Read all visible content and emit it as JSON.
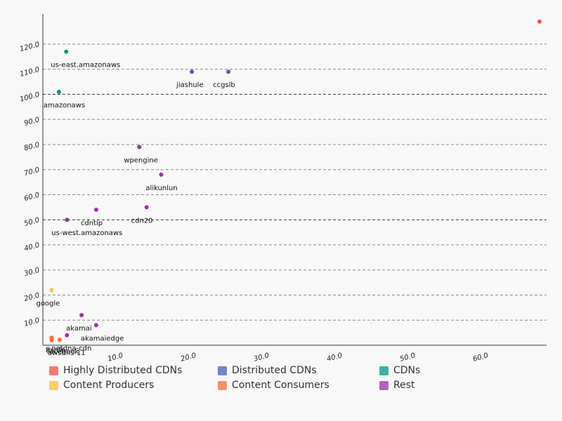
{
  "chart_data": {
    "type": "scatter",
    "xlim": [
      0,
      68
    ],
    "ylim": [
      0,
      132
    ],
    "x_ticks": [
      "10.0",
      "20.0",
      "30.0",
      "40.0",
      "50.0",
      "60.0"
    ],
    "x_tick_values": [
      10,
      20,
      30,
      40,
      50,
      60
    ],
    "y_ticks": [
      "10.0",
      "20.0",
      "30.0",
      "40.0",
      "50.0",
      "60.0",
      "70.0",
      "80.0",
      "90.0",
      "100.0",
      "110.0",
      "120.0"
    ],
    "y_tick_values": [
      10,
      20,
      30,
      40,
      50,
      60,
      70,
      80,
      90,
      100,
      110,
      120
    ],
    "dark_gridlines": [
      50,
      100
    ],
    "series": [
      {
        "name": "Highly Distributed CDNs",
        "color": "#f0504a",
        "points": [
          {
            "x": 68,
            "y": 129,
            "label": ""
          }
        ]
      },
      {
        "name": "Distributed CDNs",
        "color": "#4b5bb5",
        "points": [
          {
            "x": 20.4,
            "y": 109,
            "label": "jiashule"
          },
          {
            "x": 25.4,
            "y": 109,
            "label": "ccgslb"
          }
        ]
      },
      {
        "name": "CDNs",
        "color": "#0a9484",
        "points": [
          {
            "x": 3.2,
            "y": 117,
            "label": "us-east.amazonaws"
          },
          {
            "x": 2.2,
            "y": 101,
            "label": "amazonaws"
          }
        ]
      },
      {
        "name": "Content Producers",
        "color": "#fcc02e",
        "points": [
          {
            "x": 1.2,
            "y": 22,
            "label": "google"
          }
        ]
      },
      {
        "name": "Content Consumers",
        "color": "#ff6a3d",
        "points": [
          {
            "x": 1.2,
            "y": 3,
            "label": ""
          },
          {
            "x": 1.2,
            "y": 2.4,
            "label": ""
          },
          {
            "x": 1.2,
            "y": 2,
            "label": ""
          },
          {
            "x": 2.3,
            "y": 2.2,
            "label": ""
          }
        ]
      },
      {
        "name": "Rest",
        "color": "#9c2fb0",
        "points": [
          {
            "x": 13.2,
            "y": 79,
            "label": "wpengine"
          },
          {
            "x": 16.2,
            "y": 68,
            "label": "alikunlun"
          },
          {
            "x": 14.2,
            "y": 55,
            "label": "cdn20"
          },
          {
            "x": 7.3,
            "y": 54,
            "label": "cdntip"
          },
          {
            "x": 3.3,
            "y": 50,
            "label": "us-west.amazonaws"
          },
          {
            "x": 5.3,
            "y": 12,
            "label": "akamai"
          },
          {
            "x": 7.3,
            "y": 8,
            "label": "akamaiedge"
          },
          {
            "x": 3.3,
            "y": 4,
            "label": "netdna-cdn"
          }
        ]
      }
    ],
    "cluster_labels": [
      "fbcdn",
      "facebook",
      "awsdns-11"
    ]
  }
}
